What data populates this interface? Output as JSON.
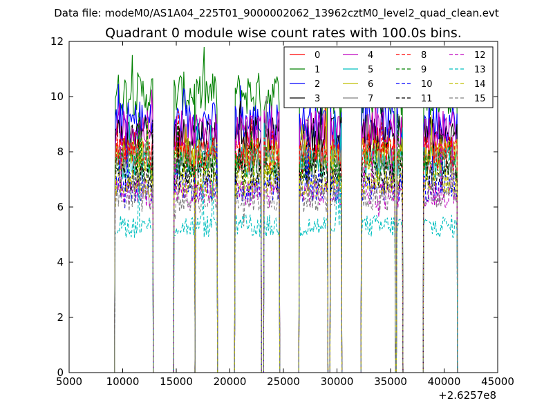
{
  "chart_data": {
    "type": "line",
    "suptitle": "Data file: modeM0/AS1A04_225T01_9000002062_13962cztM0_level2_quad_clean.evt",
    "title": "Quadrant 0 module wise count rates with 100.0s bins.",
    "xlabel": "",
    "ylabel": "",
    "x_offset_label": "+2.6257e8",
    "xlim": [
      5000,
      45000
    ],
    "ylim": [
      0,
      12
    ],
    "xticks": [
      5000,
      10000,
      15000,
      20000,
      25000,
      30000,
      35000,
      40000,
      45000
    ],
    "yticks": [
      0,
      2,
      4,
      6,
      8,
      10,
      12
    ],
    "legend_position": "upper-right",
    "legend_columns": 4,
    "segments": [
      [
        9300,
        12800
      ],
      [
        14800,
        16700
      ],
      [
        16800,
        18800
      ],
      [
        20500,
        22900
      ],
      [
        23200,
        24600
      ],
      [
        26500,
        29100
      ],
      [
        29400,
        30400
      ],
      [
        32300,
        35400
      ],
      [
        35600,
        36100
      ],
      [
        38100,
        41200
      ]
    ],
    "series": [
      {
        "name": "0",
        "color": "#ff0000",
        "style": "solid",
        "mean": 8.1
      },
      {
        "name": "1",
        "color": "#008000",
        "style": "solid",
        "mean": 10.1
      },
      {
        "name": "2",
        "color": "#0000ff",
        "style": "solid",
        "mean": 9.1
      },
      {
        "name": "3",
        "color": "#000000",
        "style": "solid",
        "mean": 8.6
      },
      {
        "name": "4",
        "color": "#bf00bf",
        "style": "solid",
        "mean": 8.8
      },
      {
        "name": "5",
        "color": "#00bfbf",
        "style": "solid",
        "mean": 7.6
      },
      {
        "name": "6",
        "color": "#bfbf00",
        "style": "solid",
        "mean": 7.9
      },
      {
        "name": "7",
        "color": "#808080",
        "style": "solid",
        "mean": 7.7
      },
      {
        "name": "8",
        "color": "#ff0000",
        "style": "dashed",
        "mean": 7.9
      },
      {
        "name": "9",
        "color": "#008000",
        "style": "dashed",
        "mean": 7.5
      },
      {
        "name": "10",
        "color": "#0000ff",
        "style": "dashed",
        "mean": 6.7
      },
      {
        "name": "11",
        "color": "#000000",
        "style": "dashed",
        "mean": 7.1
      },
      {
        "name": "12",
        "color": "#bf00bf",
        "style": "dashed",
        "mean": 6.5
      },
      {
        "name": "13",
        "color": "#00bfbf",
        "style": "dashed",
        "mean": 5.3
      },
      {
        "name": "14",
        "color": "#bfbf00",
        "style": "dashed",
        "mean": 6.9
      },
      {
        "name": "15",
        "color": "#808080",
        "style": "dashed",
        "mean": 6.3
      }
    ]
  }
}
